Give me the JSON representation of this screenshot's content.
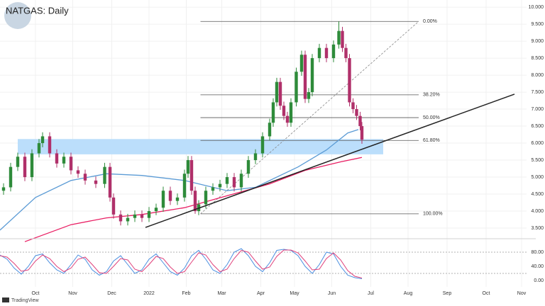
{
  "chart_data": [
    {
      "type": "candlestick",
      "title": "NATGAS: Daily",
      "source": "TradingView",
      "x": [
        2,
        6,
        10,
        14,
        18,
        22,
        24,
        28,
        32,
        36,
        40,
        44,
        48,
        54,
        59,
        62,
        64,
        68,
        72,
        76,
        80,
        84,
        88,
        92,
        96,
        100,
        104,
        106,
        108,
        110,
        112,
        116,
        120,
        124,
        128,
        132,
        136,
        140,
        144,
        148,
        152,
        154,
        156,
        158,
        160,
        162,
        164,
        167,
        170,
        172,
        174,
        176,
        180,
        184,
        188,
        191,
        193,
        195,
        197,
        199,
        201,
        203,
        204
      ],
      "open": [
        4.6,
        4.7,
        5.3,
        5.6,
        5.0,
        5.7,
        6.0,
        6.2,
        5.7,
        5.4,
        5.6,
        5.2,
        5.1,
        4.9,
        4.8,
        5.3,
        4.4,
        3.9,
        3.7,
        3.8,
        3.9,
        3.8,
        4.0,
        4.1,
        4.6,
        4.3,
        4.4,
        5.1,
        5.5,
        4.6,
        4.0,
        4.2,
        4.6,
        4.7,
        4.8,
        5.0,
        4.7,
        5.1,
        5.5,
        5.7,
        6.2,
        6.6,
        7.2,
        7.8,
        7.1,
        6.8,
        6.6,
        7.2,
        8.1,
        8.6,
        7.3,
        7.5,
        8.5,
        8.8,
        8.5,
        8.9,
        9.3,
        8.8,
        8.5,
        7.2,
        7.0,
        6.8,
        6.5
      ],
      "high": [
        4.82,
        5.42,
        5.72,
        5.72,
        5.82,
        6.12,
        6.32,
        6.32,
        5.82,
        5.72,
        5.72,
        5.32,
        5.22,
        5.02,
        5.42,
        5.42,
        4.52,
        4.02,
        3.92,
        4.02,
        4.02,
        4.12,
        4.22,
        4.72,
        4.72,
        4.52,
        5.22,
        5.62,
        5.62,
        4.72,
        4.32,
        4.72,
        4.82,
        4.92,
        5.12,
        5.12,
        5.22,
        5.62,
        5.82,
        6.32,
        6.72,
        7.32,
        7.92,
        7.92,
        7.22,
        6.92,
        7.32,
        8.22,
        8.72,
        8.72,
        7.62,
        8.62,
        8.92,
        8.92,
        9.02,
        9.58,
        9.42,
        8.92,
        8.62,
        7.32,
        7.12,
        6.92,
        6.62
      ],
      "low": [
        4.48,
        4.58,
        5.18,
        4.88,
        4.88,
        5.58,
        5.88,
        5.58,
        5.28,
        5.28,
        5.08,
        4.98,
        4.78,
        4.68,
        4.68,
        4.28,
        3.78,
        3.58,
        3.58,
        3.68,
        3.68,
        3.68,
        3.88,
        3.98,
        4.18,
        4.18,
        4.28,
        4.98,
        4.48,
        3.92,
        3.88,
        4.08,
        4.48,
        4.58,
        4.68,
        4.58,
        4.58,
        4.98,
        5.38,
        5.58,
        6.08,
        6.48,
        7.08,
        6.98,
        6.68,
        6.48,
        6.48,
        7.08,
        7.98,
        7.18,
        7.18,
        7.38,
        8.38,
        8.38,
        8.38,
        8.78,
        8.68,
        8.38,
        7.08,
        6.88,
        6.68,
        6.38,
        5.98
      ],
      "close": [
        4.7,
        5.3,
        5.6,
        5.0,
        5.7,
        6.0,
        6.2,
        5.7,
        5.4,
        5.6,
        5.2,
        5.1,
        4.9,
        4.8,
        5.3,
        4.4,
        3.9,
        3.7,
        3.8,
        3.9,
        3.8,
        4.0,
        4.1,
        4.6,
        4.3,
        4.4,
        5.1,
        5.5,
        4.6,
        4.0,
        4.2,
        4.6,
        4.7,
        4.8,
        5.0,
        4.7,
        5.1,
        5.5,
        5.7,
        6.2,
        6.6,
        7.2,
        7.8,
        7.1,
        6.8,
        6.6,
        7.2,
        8.1,
        8.6,
        7.3,
        7.5,
        8.5,
        8.8,
        8.5,
        8.9,
        9.3,
        8.8,
        8.5,
        7.2,
        7.0,
        6.8,
        6.5,
        6.1
      ],
      "up_color": "#2e8b3a",
      "down_color": "#b0306a",
      "lines": [
        {
          "color": "#5b9bd5",
          "x": [
            0,
            20,
            40,
            60,
            80,
            104,
            128,
            144,
            168,
            184,
            196,
            202
          ],
          "values": [
            3.44,
            4.4,
            4.9,
            5.1,
            5.05,
            4.9,
            4.6,
            4.7,
            5.3,
            5.8,
            6.3,
            6.4
          ]
        },
        {
          "color": "#e91e63",
          "x": [
            14,
            40,
            60,
            80,
            104,
            128,
            152,
            172,
            192,
            204
          ],
          "values": [
            3.1,
            3.6,
            3.8,
            3.9,
            4.1,
            4.45,
            4.8,
            5.2,
            5.45,
            5.58
          ]
        }
      ],
      "zone": {
        "color": "#bbdefb",
        "x": [
          10,
          216
        ],
        "values": [
          5.67,
          6.12
        ]
      },
      "trendline": {
        "color": "#222222",
        "x": [
          82,
          290
        ],
        "values": [
          3.52,
          7.44
        ]
      },
      "fib_x": [
        113,
        236
      ],
      "fib_levels": [
        {
          "label": "0.00%",
          "value": 9.58
        },
        {
          "label": "38.20%",
          "value": 7.42
        },
        {
          "label": "50.00%",
          "value": 6.75
        },
        {
          "label": "61.80%",
          "value": 6.08
        },
        {
          "label": "100.00%",
          "value": 3.92
        }
      ],
      "xlim": [
        0,
        302
      ],
      "ylim": [
        3.23,
        10.21
      ],
      "yticks": [
        {
          "value": 10,
          "label": "10.000"
        },
        {
          "value": 9.5,
          "label": "9.500"
        },
        {
          "value": 9,
          "label": "9.000"
        },
        {
          "value": 8.5,
          "label": "8.500"
        },
        {
          "value": 8,
          "label": "8.000"
        },
        {
          "value": 7.5,
          "label": "7.500"
        },
        {
          "value": 7,
          "label": "7.000"
        },
        {
          "value": 6.5,
          "label": "6.500"
        },
        {
          "value": 6,
          "label": "6.000"
        },
        {
          "value": 5.5,
          "label": "5.500"
        },
        {
          "value": 5,
          "label": "5.000"
        },
        {
          "value": 4.5,
          "label": "4.500"
        },
        {
          "value": 4,
          "label": "4.000"
        },
        {
          "value": 3.5,
          "label": "3.500"
        }
      ],
      "grid": true
    },
    {
      "type": "line",
      "x": [
        0,
        4,
        8,
        12,
        16,
        20,
        24,
        28,
        32,
        36,
        40,
        44,
        48,
        52,
        56,
        60,
        64,
        68,
        72,
        76,
        80,
        84,
        88,
        92,
        96,
        100,
        104,
        108,
        112,
        116,
        120,
        124,
        128,
        132,
        136,
        140,
        144,
        148,
        152,
        156,
        160,
        164,
        168,
        172,
        176,
        180,
        184,
        188,
        192,
        196,
        200,
        204
      ],
      "series": [
        {
          "color": "#4a8fe0",
          "values": [
            72,
            60,
            35,
            18,
            40,
            70,
            75,
            50,
            30,
            20,
            45,
            72,
            60,
            30,
            15,
            25,
            55,
            70,
            45,
            20,
            30,
            60,
            75,
            50,
            25,
            15,
            35,
            70,
            85,
            60,
            30,
            20,
            45,
            80,
            90,
            70,
            40,
            25,
            50,
            85,
            88,
            85,
            70,
            40,
            20,
            45,
            80,
            75,
            40,
            15,
            8,
            5
          ]
        },
        {
          "color": "#e0407a",
          "values": [
            70,
            66,
            48,
            26,
            30,
            55,
            72,
            62,
            40,
            25,
            35,
            60,
            66,
            45,
            22,
            20,
            40,
            62,
            58,
            32,
            25,
            45,
            68,
            62,
            38,
            20,
            25,
            52,
            78,
            72,
            45,
            25,
            32,
            62,
            85,
            80,
            55,
            32,
            38,
            68,
            86,
            86,
            78,
            55,
            30,
            32,
            62,
            78,
            58,
            28,
            12,
            7
          ]
        }
      ],
      "levels": [
        80,
        20
      ],
      "xlim": [
        0,
        302
      ],
      "ylim": [
        -18,
        116
      ],
      "yticks": [
        {
          "value": 80,
          "label": "80.00"
        },
        {
          "value": 40,
          "label": "40.00"
        },
        {
          "value": 0,
          "label": "0.00"
        }
      ],
      "xticks": [
        {
          "value": 20,
          "label": "Oct"
        },
        {
          "value": 41,
          "label": "Nov"
        },
        {
          "value": 63,
          "label": "Dec"
        },
        {
          "value": 84,
          "label": "2022"
        },
        {
          "value": 105,
          "label": "Feb"
        },
        {
          "value": 125,
          "label": "Mar"
        },
        {
          "value": 147,
          "label": "Apr"
        },
        {
          "value": 166,
          "label": "May"
        },
        {
          "value": 187,
          "label": "Jun"
        },
        {
          "value": 209,
          "label": "Jul"
        },
        {
          "value": 230,
          "label": "Aug"
        },
        {
          "value": 252,
          "label": "Sep"
        },
        {
          "value": 274,
          "label": "Oct"
        },
        {
          "value": 294,
          "label": "Nov"
        }
      ]
    }
  ]
}
